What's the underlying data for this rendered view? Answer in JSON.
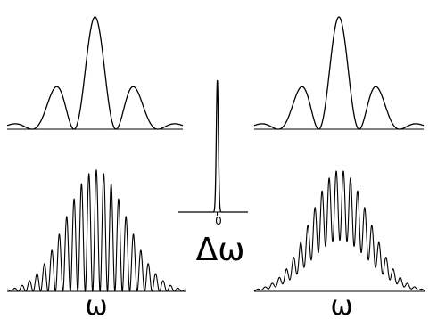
{
  "panels": [
    {
      "id": "top-left",
      "kind": "sinc-squared"
    },
    {
      "id": "top-right",
      "kind": "sinc-squared"
    },
    {
      "id": "center",
      "kind": "narrow-peak",
      "tick_label": "0"
    },
    {
      "id": "bottom-left",
      "kind": "fringe-comb"
    },
    {
      "id": "bottom-right",
      "kind": "fringe-comb-offset"
    }
  ],
  "labels": {
    "center_axis": "Δω",
    "center_tick": "0",
    "bottom_left_axis": "ω",
    "bottom_right_axis": "ω"
  }
}
